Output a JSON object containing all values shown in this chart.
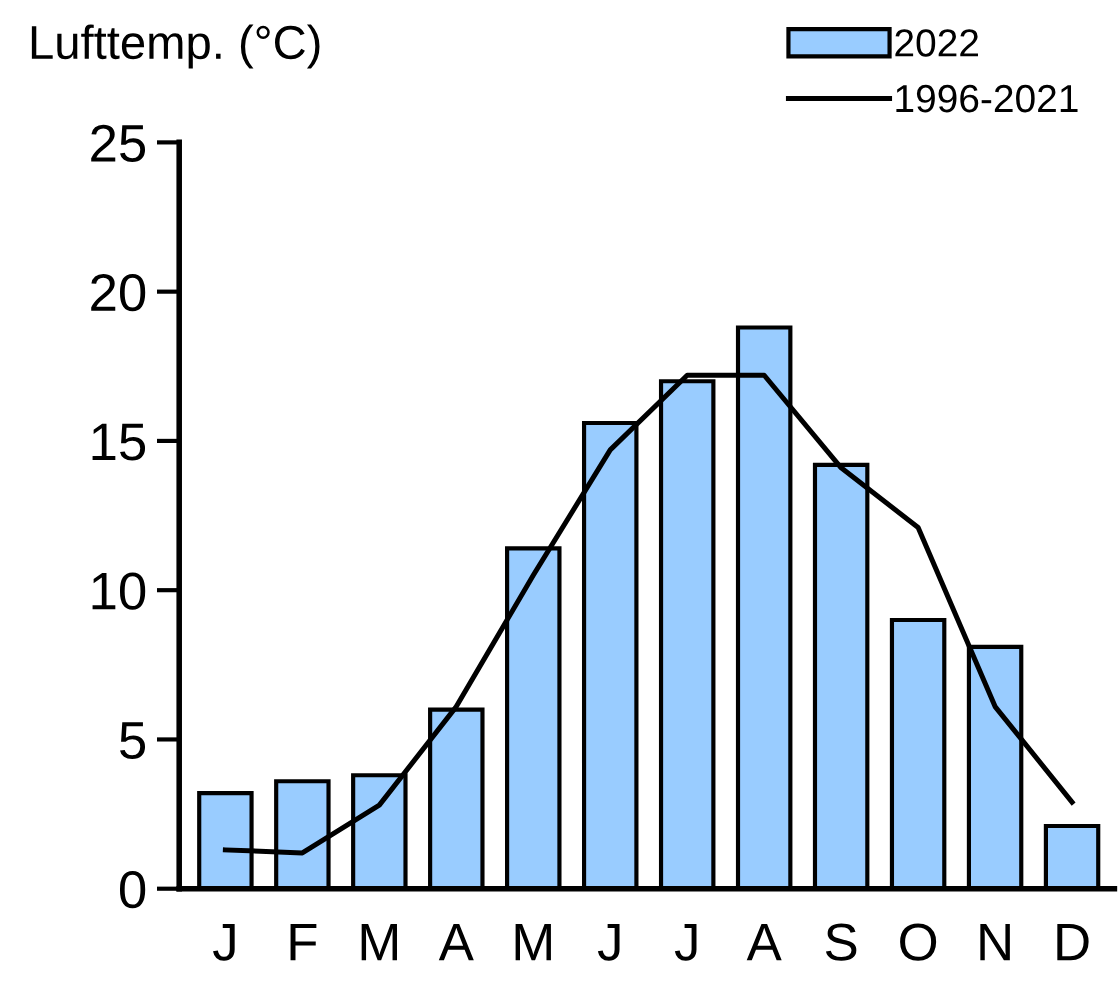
{
  "chart_data": {
    "type": "bar",
    "ylabel": "Lufttemp. (°C)",
    "categories": [
      "J",
      "F",
      "M",
      "A",
      "M",
      "J",
      "J",
      "A",
      "S",
      "O",
      "N",
      "D"
    ],
    "series": [
      {
        "name": "2022",
        "color": "#99ccff",
        "values": [
          3.2,
          3.6,
          3.8,
          6.0,
          11.4,
          15.6,
          17.0,
          18.8,
          14.2,
          9.0,
          8.1,
          2.1
        ]
      },
      {
        "name": "1996-2021",
        "type": "line",
        "color": "#000000",
        "values": [
          1.3,
          1.2,
          2.8,
          6.1,
          10.5,
          14.7,
          17.2,
          17.2,
          14.1,
          12.1,
          6.1,
          2.9
        ]
      }
    ],
    "ylim": [
      0,
      25
    ],
    "yticks": [
      0,
      5,
      10,
      15,
      20,
      25
    ],
    "grid": false,
    "legend": "top right",
    "marker": "none",
    "line_style": "solid"
  }
}
